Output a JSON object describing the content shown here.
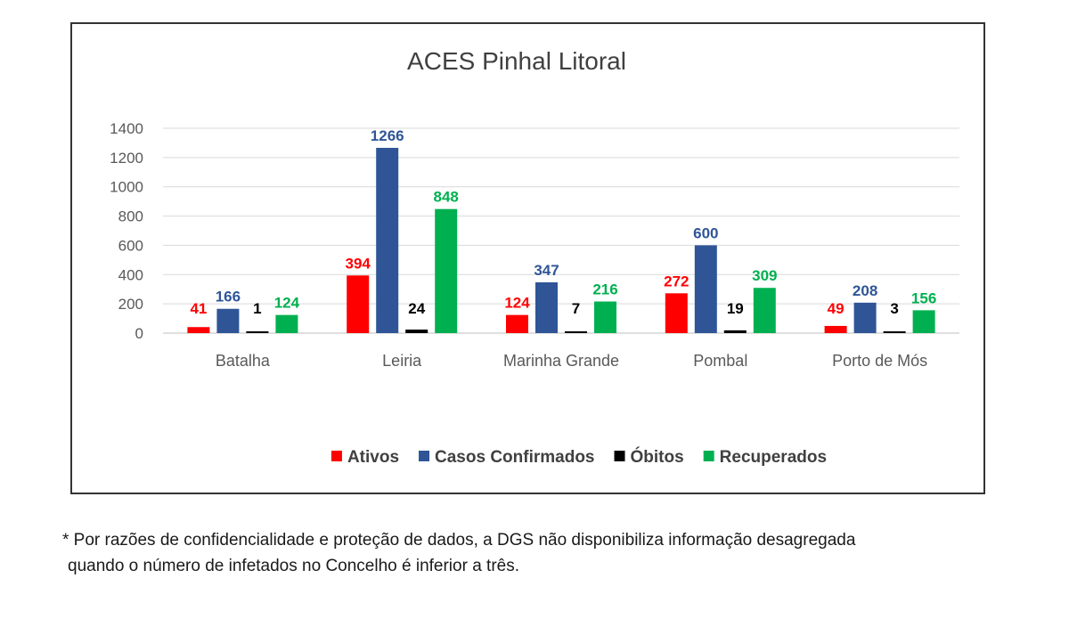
{
  "chart_data": {
    "type": "bar",
    "title": "ACES Pinhal Litoral",
    "categories": [
      "Batalha",
      "Leiria",
      "Marinha Grande",
      "Pombal",
      "Porto de Mós"
    ],
    "series": [
      {
        "name": "Ativos",
        "color": "#ff0000",
        "label_color": "#ff0000",
        "values": [
          41,
          394,
          124,
          272,
          49
        ]
      },
      {
        "name": "Casos Confirmados",
        "color": "#2f5597",
        "label_color": "#2f5597",
        "values": [
          166,
          1266,
          347,
          600,
          208
        ]
      },
      {
        "name": "Óbitos",
        "color": "#000000",
        "label_color": "#000000",
        "values": [
          1,
          24,
          7,
          19,
          3
        ]
      },
      {
        "name": "Recuperados",
        "color": "#00b050",
        "label_color": "#00b050",
        "values": [
          124,
          848,
          216,
          309,
          156
        ]
      }
    ],
    "ylim": [
      0,
      1400
    ],
    "yticks": [
      0,
      200,
      400,
      600,
      800,
      1000,
      1200,
      1400
    ],
    "xlabel": "",
    "ylabel": "",
    "grid": true,
    "legend_position": "bottom"
  },
  "footnote": {
    "line1": "* Por razões de confidencialidade e proteção de dados, a DGS não disponibiliza informação desagregada",
    "line2": "quando o número de infetados no Concelho é inferior a três."
  }
}
